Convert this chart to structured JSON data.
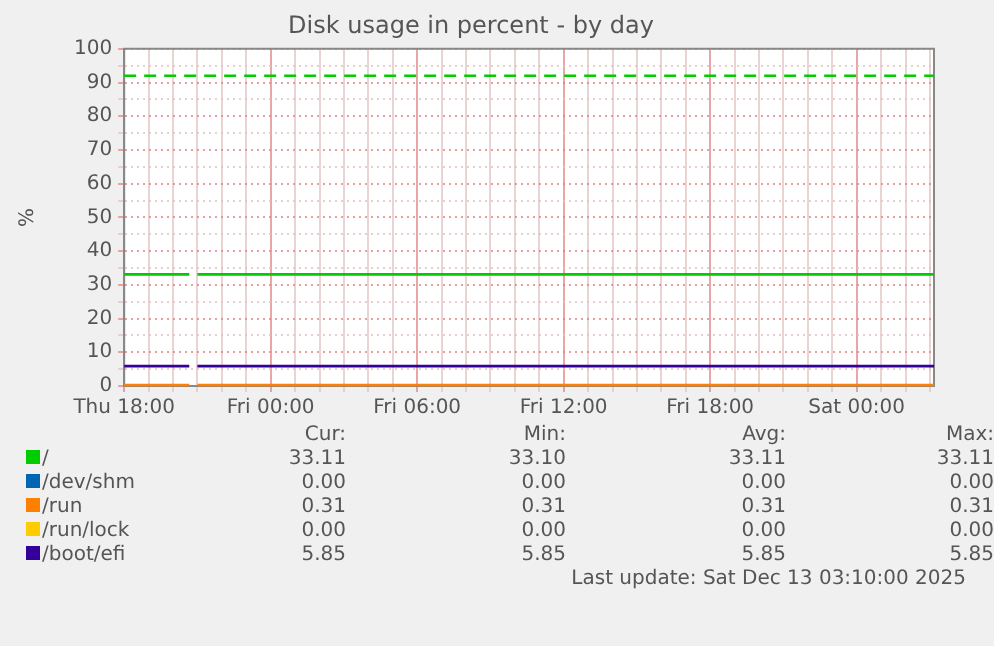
{
  "chart_data": {
    "type": "line",
    "title": "Disk usage in percent - by day",
    "ylabel": "%",
    "xlim": [
      "2025-12-11T18:00",
      "2025-12-13T03:10"
    ],
    "xticks": [
      {
        "value": "2025-12-11T18:00",
        "label": "Thu 18:00"
      },
      {
        "value": "2025-12-11T19:00",
        "label": null
      },
      {
        "value": "2025-12-11T20:00",
        "label": null
      },
      {
        "value": "2025-12-11T21:00",
        "label": null
      },
      {
        "value": "2025-12-11T22:00",
        "label": null
      },
      {
        "value": "2025-12-11T23:00",
        "label": null
      },
      {
        "value": "2025-12-12T00:00",
        "label": "Fri 00:00"
      },
      {
        "value": "2025-12-12T01:00",
        "label": null
      },
      {
        "value": "2025-12-12T02:00",
        "label": null
      },
      {
        "value": "2025-12-12T03:00",
        "label": null
      },
      {
        "value": "2025-12-12T04:00",
        "label": null
      },
      {
        "value": "2025-12-12T05:00",
        "label": null
      },
      {
        "value": "2025-12-12T06:00",
        "label": "Fri 06:00"
      },
      {
        "value": "2025-12-12T07:00",
        "label": null
      },
      {
        "value": "2025-12-12T08:00",
        "label": null
      },
      {
        "value": "2025-12-12T09:00",
        "label": null
      },
      {
        "value": "2025-12-12T10:00",
        "label": null
      },
      {
        "value": "2025-12-12T11:00",
        "label": null
      },
      {
        "value": "2025-12-12T12:00",
        "label": "Fri 12:00"
      },
      {
        "value": "2025-12-12T13:00",
        "label": null
      },
      {
        "value": "2025-12-12T14:00",
        "label": null
      },
      {
        "value": "2025-12-12T15:00",
        "label": null
      },
      {
        "value": "2025-12-12T16:00",
        "label": null
      },
      {
        "value": "2025-12-12T17:00",
        "label": null
      },
      {
        "value": "2025-12-12T18:00",
        "label": "Fri 18:00"
      },
      {
        "value": "2025-12-12T19:00",
        "label": null
      },
      {
        "value": "2025-12-12T20:00",
        "label": null
      },
      {
        "value": "2025-12-12T21:00",
        "label": null
      },
      {
        "value": "2025-12-12T22:00",
        "label": null
      },
      {
        "value": "2025-12-12T23:00",
        "label": null
      },
      {
        "value": "2025-12-13T00:00",
        "label": "Sat 00:00"
      },
      {
        "value": "2025-12-13T01:00",
        "label": null
      },
      {
        "value": "2025-12-13T02:00",
        "label": null
      },
      {
        "value": "2025-12-13T03:00",
        "label": null
      }
    ],
    "ylim": [
      0,
      100
    ],
    "yticks": [
      0,
      {
        "value": 5,
        "label": null
      },
      10,
      {
        "value": 15,
        "label": null
      },
      20,
      {
        "value": 25,
        "label": null
      },
      30,
      {
        "value": 35,
        "label": null
      },
      40,
      {
        "value": 45,
        "label": null
      },
      50,
      {
        "value": 55,
        "label": null
      },
      60,
      {
        "value": 65,
        "label": null
      },
      70,
      {
        "value": 75,
        "label": null
      },
      80,
      {
        "value": 85,
        "label": null
      },
      90,
      {
        "value": 95,
        "label": null
      },
      100
    ],
    "x": [
      "2025-12-11T18:00",
      "2025-12-11T20:40",
      "2025-12-11T20:50",
      "2025-12-11T21:00",
      "2025-12-13T03:10"
    ],
    "series": [
      {
        "name": "/",
        "color": "#00cc00",
        "values": [
          33.1,
          33.1,
          null,
          33.1,
          33.1
        ]
      },
      {
        "name": "/dev/shm",
        "color": "#0066b3",
        "values": [
          null,
          null,
          null,
          null,
          null
        ]
      },
      {
        "name": "/run",
        "color": "#ff8000",
        "values": [
          0.3,
          0.3,
          null,
          0.3,
          0.3
        ]
      },
      {
        "name": "/run/lock",
        "color": "#ffcc00",
        "values": [
          null,
          null,
          null,
          null,
          null
        ]
      },
      {
        "name": "/boot/efi",
        "color": "#330099",
        "values": [
          5.9,
          5.9,
          null,
          5.9,
          5.9
        ]
      }
    ],
    "ref_lines": [
      {
        "axis": "y",
        "value": 92,
        "color": "#00cc00",
        "line_style": "dashed"
      }
    ],
    "annotations": [
      "Cur:",
      "Min:",
      "Avg:",
      "Max:",
      "33.11",
      "33.10",
      "33.11",
      "33.11",
      "0.00",
      "0.00",
      "0.00",
      "0.00",
      "0.31",
      "0.31",
      "0.31",
      "0.31",
      "0.00",
      "0.00",
      "0.00",
      "0.00",
      "5.85",
      "5.85",
      "5.85",
      "5.85",
      "Last update: Sat Dec 13 03:10:00 2025"
    ],
    "grid": true,
    "legend": "bottom",
    "line_style": "solid",
    "marker": "none"
  }
}
